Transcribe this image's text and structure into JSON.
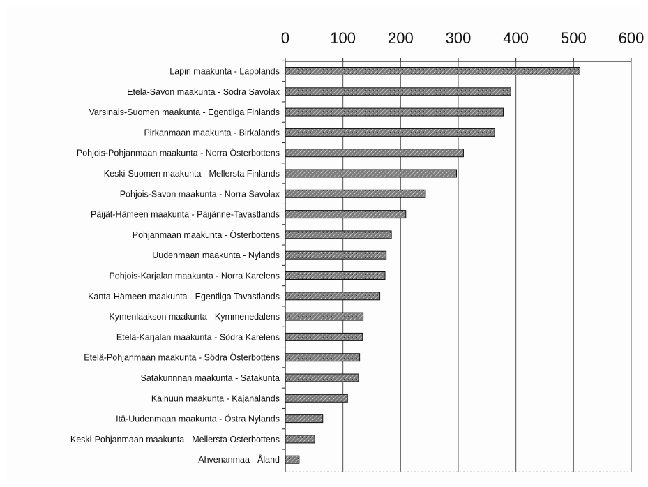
{
  "chart_data": {
    "type": "bar",
    "orientation": "horizontal",
    "title": "",
    "xlabel": "",
    "ylabel": "",
    "xlim": [
      0,
      600
    ],
    "x_ticks": [
      0,
      100,
      200,
      300,
      400,
      500,
      600
    ],
    "x_axis_position": "top",
    "grid": true,
    "legend": "none",
    "bar_color": "#6e6e6e",
    "categories": [
      "Lapin maakunta - Lapplands",
      "Etelä-Savon maakunta - Södra Savolax",
      "Varsinais-Suomen maakunta - Egentliga Finlands",
      "Pirkanmaan maakunta - Birkalands",
      "Pohjois-Pohjanmaan maakunta - Norra Österbottens",
      "Keski-Suomen maakunta - Mellersta Finlands",
      "Pohjois-Savon maakunta - Norra Savolax",
      "Päijät-Hämeen maakunta - Päijänne-Tavastlands",
      "Pohjanmaan maakunta - Österbottens",
      "Uudenmaan maakunta - Nylands",
      "Pohjois-Karjalan maakunta - Norra Karelens",
      "Kanta-Hämeen maakunta - Egentliga Tavastlands",
      "Kymenlaakson maakunta - Kymmenedalens",
      "Etelä-Karjalan maakunta - Södra Karelens",
      "Etelä-Pohjanmaan maakunta - Södra Österbottens",
      "Satakunnnan maakunta - Satakunta",
      "Kainuun maakunta - Kajanalands",
      "Itä-Uudenmaan maakunta - Östra Nylands",
      "Keski-Pohjanmaan maakunta - Mellersta Österbottens",
      "Ahvenanmaa - Åland"
    ],
    "values": [
      511,
      391,
      378,
      363,
      309,
      297,
      243,
      209,
      184,
      175,
      173,
      164,
      135,
      134,
      129,
      127,
      108,
      65,
      51,
      24
    ]
  }
}
